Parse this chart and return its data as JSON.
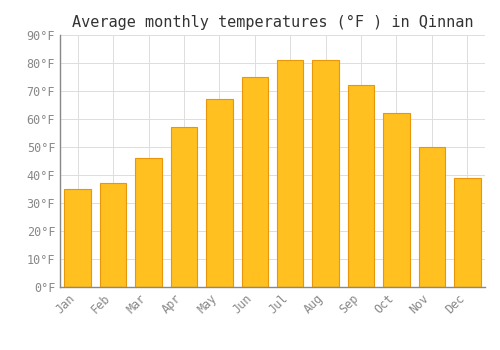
{
  "title": "Average monthly temperatures (°F ) in Qinnan",
  "months": [
    "Jan",
    "Feb",
    "Mar",
    "Apr",
    "May",
    "Jun",
    "Jul",
    "Aug",
    "Sep",
    "Oct",
    "Nov",
    "Dec"
  ],
  "values": [
    35,
    37,
    46,
    57,
    67,
    75,
    81,
    81,
    72,
    62,
    50,
    39
  ],
  "bar_color": "#FFC020",
  "bar_edge_color": "#E8960A",
  "background_color": "#FFFFFF",
  "grid_color": "#DDDDDD",
  "ylim": [
    0,
    90
  ],
  "yticks": [
    0,
    10,
    20,
    30,
    40,
    50,
    60,
    70,
    80,
    90
  ],
  "title_fontsize": 11,
  "tick_fontsize": 8.5,
  "tick_color": "#888888",
  "spine_color": "#888888",
  "font_family": "monospace"
}
